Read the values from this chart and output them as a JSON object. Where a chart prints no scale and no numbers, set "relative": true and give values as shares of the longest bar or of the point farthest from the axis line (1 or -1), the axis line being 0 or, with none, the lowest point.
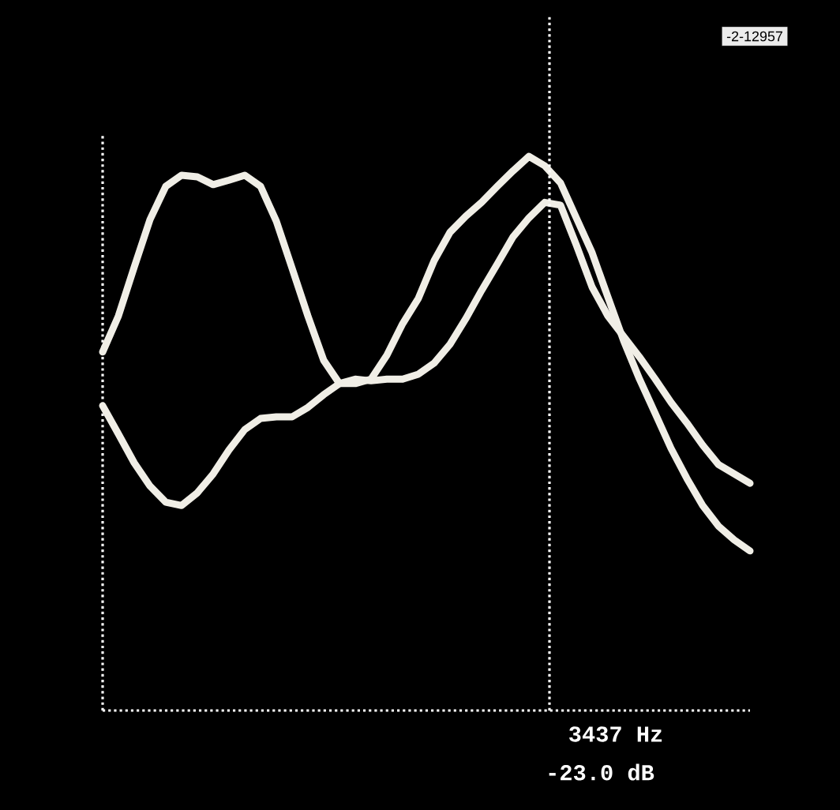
{
  "chart_data": {
    "type": "line",
    "relative": true,
    "categories": [
      null,
      null,
      null,
      null,
      null,
      null,
      null,
      null,
      null,
      null,
      null,
      null,
      null,
      null,
      null,
      null,
      null,
      null,
      null,
      null,
      null,
      null,
      null,
      null,
      null,
      null,
      null,
      null,
      null,
      null,
      null,
      null,
      null,
      null,
      null,
      null,
      null,
      null,
      null,
      null,
      null,
      null
    ],
    "series": [
      {
        "color": "#f0eee6",
        "values": [
          0.647,
          0.712,
          0.8,
          0.886,
          0.946,
          0.966,
          0.963,
          0.949,
          0.957,
          0.966,
          0.946,
          0.883,
          0.798,
          0.712,
          0.632,
          0.59,
          0.59,
          0.598,
          0.641,
          0.698,
          0.744,
          0.812,
          0.863,
          0.892,
          0.917,
          0.946,
          0.974,
          1.0,
          0.983,
          0.952,
          0.889,
          0.826,
          0.746,
          0.667,
          0.598,
          0.536,
          0.473,
          0.419,
          0.37,
          0.333,
          0.308,
          0.288
        ]
      },
      {
        "color": "#f0eee6",
        "values": [
          0.55,
          0.499,
          0.447,
          0.405,
          0.376,
          0.37,
          0.393,
          0.427,
          0.47,
          0.507,
          0.527,
          0.53,
          0.53,
          0.547,
          0.57,
          0.59,
          0.598,
          0.595,
          0.598,
          0.598,
          0.607,
          0.627,
          0.661,
          0.707,
          0.758,
          0.806,
          0.855,
          0.889,
          0.917,
          0.912,
          0.84,
          0.764,
          0.712,
          0.675,
          0.638,
          0.598,
          0.556,
          0.519,
          0.479,
          0.444,
          0.427,
          0.41
        ]
      }
    ],
    "annotations": [
      "3437 Hz",
      "-23.0 dB",
      "-2-12957"
    ]
  }
}
